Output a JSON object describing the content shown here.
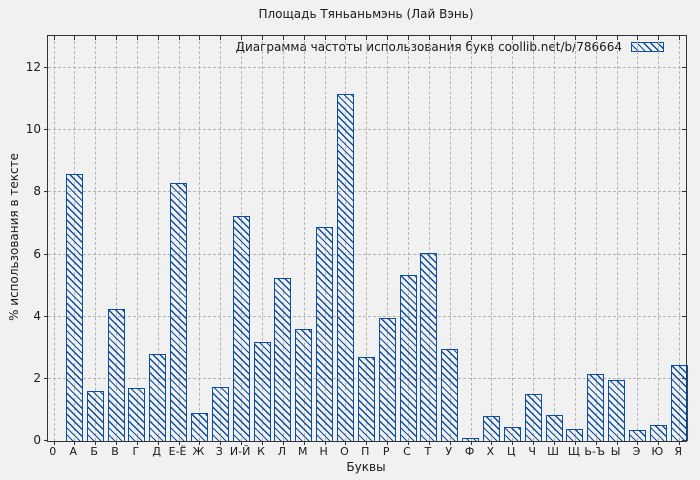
{
  "chart_data": {
    "type": "bar",
    "title": "Площадь Тяньаньмэнь (Лай Вэнь)",
    "legend": "Диаграмма частоты использования букв coollib.net/b/786664",
    "legend_position": "top-right-inside",
    "xlabel": "Буквы",
    "ylabel": "% использования в тексте",
    "x_origin_label": "0",
    "categories": [
      "А",
      "Б",
      "В",
      "Г",
      "Д",
      "Е-Ё",
      "Ж",
      "З",
      "И-Й",
      "К",
      "Л",
      "М",
      "Н",
      "О",
      "П",
      "Р",
      "С",
      "Т",
      "У",
      "Ф",
      "Х",
      "Ц",
      "Ч",
      "Ш",
      "Щ",
      "Ь-Ъ",
      "Ы",
      "Э",
      "Ю",
      "Я"
    ],
    "values": [
      8.6,
      1.6,
      4.25,
      1.7,
      2.8,
      8.3,
      0.9,
      1.75,
      7.25,
      3.2,
      5.25,
      3.6,
      6.9,
      11.15,
      2.7,
      3.95,
      5.35,
      6.05,
      2.95,
      0.1,
      0.8,
      0.45,
      1.5,
      0.85,
      0.4,
      2.15,
      1.95,
      0.35,
      0.5,
      2.45
    ],
    "yticks": [
      0,
      2,
      4,
      6,
      8,
      10,
      12
    ],
    "ylim": [
      0,
      13
    ],
    "grid": true,
    "hatch": "diagonal-backslash",
    "colors": {
      "bar": "#0d4da1",
      "grid": "#b4b4b4",
      "text": "#1a1a1a",
      "background": "#f1f1f1",
      "border": "#333333"
    }
  }
}
